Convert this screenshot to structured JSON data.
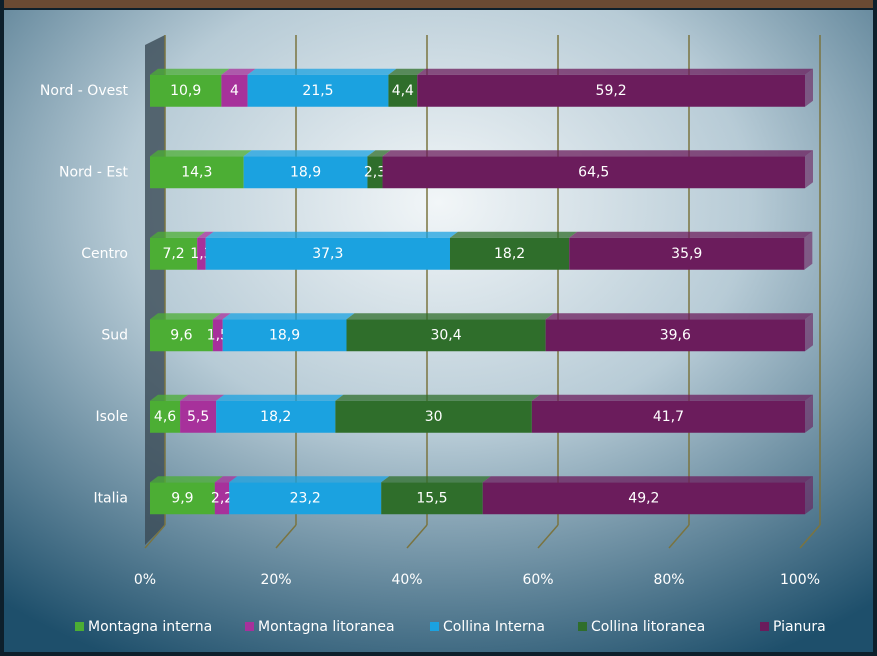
{
  "chart_data": {
    "type": "bar",
    "orientation": "horizontal",
    "stacked": true,
    "categories": [
      "Nord - Ovest",
      "Nord - Est",
      "Centro",
      "Sud",
      "Isole",
      "Italia"
    ],
    "series": [
      {
        "name": "Montagna interna",
        "color": "#4cae34",
        "values": [
          10.9,
          14.3,
          7.2,
          9.6,
          4.6,
          9.9
        ],
        "value_labels": [
          "10,9",
          "14,3",
          "7,2",
          "9,6",
          "4,6",
          "9,9"
        ]
      },
      {
        "name": "Montagna litoranea",
        "color": "#a7319b",
        "values": [
          4,
          null,
          1.3,
          1.5,
          5.5,
          2.2
        ],
        "value_labels": [
          "4",
          null,
          "1,3",
          "1,5",
          "5,5",
          "2,2"
        ]
      },
      {
        "name": "Collina Interna",
        "color": "#1ba2e0",
        "values": [
          21.5,
          18.9,
          37.3,
          18.9,
          18.2,
          23.2
        ],
        "value_labels": [
          "21,5",
          "18,9",
          "37,3",
          "18,9",
          "18,2",
          "23,2"
        ]
      },
      {
        "name": "Collina litoranea",
        "color": "#2f6e2b",
        "values": [
          4.4,
          2.3,
          18.2,
          30.4,
          30,
          15.5
        ],
        "value_labels": [
          "4,4",
          "2,3",
          "18,2",
          "30,4",
          "30",
          "15,5"
        ]
      },
      {
        "name": "Pianura",
        "color": "#6b1c5c",
        "values": [
          59.2,
          64.5,
          35.9,
          39.6,
          41.7,
          49.2
        ],
        "value_labels": [
          "59,2",
          "64,5",
          "35,9",
          "39,6",
          "41,7",
          "49,2"
        ]
      }
    ],
    "xlim": [
      0,
      100
    ],
    "xticks": [
      {
        "value": 0,
        "label": "0%"
      },
      {
        "value": 20,
        "label": "20%"
      },
      {
        "value": 40,
        "label": "40%"
      },
      {
        "value": 60,
        "label": "60%"
      },
      {
        "value": 80,
        "label": "80%"
      },
      {
        "value": 100,
        "label": "100%"
      }
    ],
    "grid": true,
    "legend": "bottom"
  }
}
